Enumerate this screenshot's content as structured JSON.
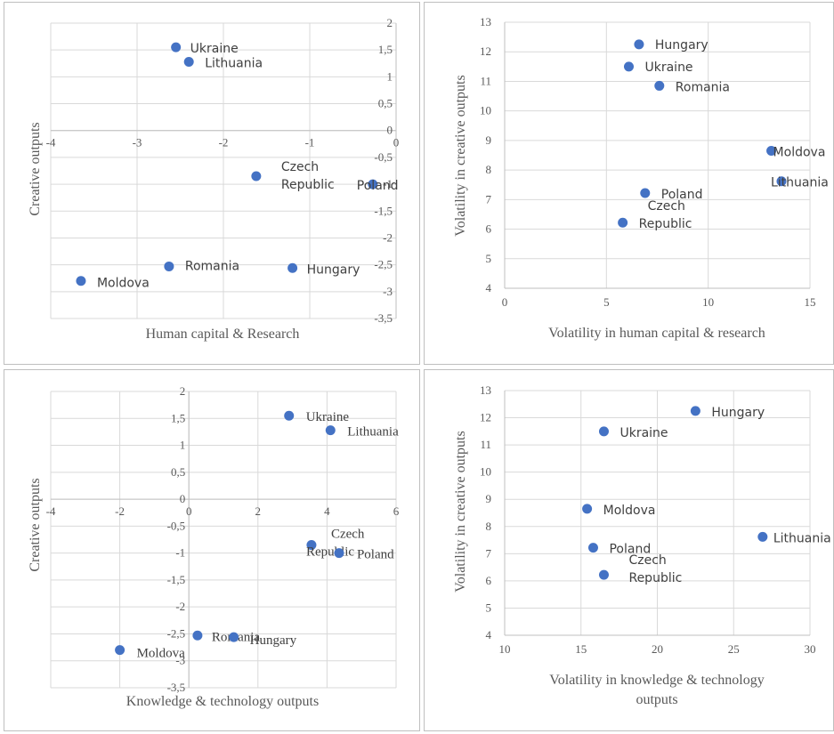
{
  "colors": {
    "point": "#4472c4",
    "grid": "#d9d9d9",
    "axis": "#bfbfbf",
    "text": "#595959"
  },
  "chart_data": [
    {
      "type": "scatter",
      "xlabel": "Human capital & Research",
      "ylabel": "Creative outputs",
      "xlim": [
        -4,
        0
      ],
      "ylim": [
        -3.5,
        2
      ],
      "xticks": [
        "-4",
        "-3",
        "-2",
        "-1",
        "0"
      ],
      "yticks": [
        "2",
        "1,5",
        "1",
        "0,5",
        "0",
        "-0,5",
        "-1",
        "-1,5",
        "-2",
        "-2,5",
        "-3",
        "-3,5"
      ],
      "grid": true,
      "points": [
        {
          "label": "Ukraine",
          "x": -2.55,
          "y": 1.55
        },
        {
          "label": "Lithuania",
          "x": -2.4,
          "y": 1.28
        },
        {
          "label": "Czech Republic",
          "x": -1.62,
          "y": -0.85
        },
        {
          "label": "Poland",
          "x": -0.27,
          "y": -1.0
        },
        {
          "label": "Romania",
          "x": -2.63,
          "y": -2.53
        },
        {
          "label": "Hungary",
          "x": -1.2,
          "y": -2.56
        },
        {
          "label": "Moldova",
          "x": -3.65,
          "y": -2.8
        }
      ]
    },
    {
      "type": "scatter",
      "xlabel": "Volatility in human capital & research",
      "ylabel": "Volatility in creative outputs",
      "xlim": [
        0,
        15
      ],
      "ylim": [
        4,
        13
      ],
      "xticks": [
        "0",
        "5",
        "10",
        "15"
      ],
      "yticks": [
        "13",
        "12",
        "11",
        "10",
        "9",
        "8",
        "7",
        "6",
        "5",
        "4"
      ],
      "grid": true,
      "points": [
        {
          "label": "Hungary",
          "x": 6.6,
          "y": 12.25
        },
        {
          "label": "Ukraine",
          "x": 6.1,
          "y": 11.5
        },
        {
          "label": "Romania",
          "x": 7.6,
          "y": 10.85
        },
        {
          "label": "Moldova",
          "x": 13.1,
          "y": 8.65
        },
        {
          "label": "Lithuania",
          "x": 13.6,
          "y": 7.62
        },
        {
          "label": "Poland",
          "x": 6.9,
          "y": 7.22
        },
        {
          "label": "Czech Republic",
          "x": 5.8,
          "y": 6.22
        }
      ]
    },
    {
      "type": "scatter",
      "xlabel": "Knowledge & technology outputs",
      "ylabel": "Creative outputs",
      "xlim": [
        -4,
        6
      ],
      "ylim": [
        -3.5,
        2
      ],
      "xticks": [
        "-4",
        "-2",
        "0",
        "2",
        "4",
        "6"
      ],
      "yticks": [
        "2",
        "1,5",
        "1",
        "0,5",
        "0",
        "-0,5",
        "-1",
        "-1,5",
        "-2",
        "-2,5",
        "-3",
        "-3,5"
      ],
      "grid": true,
      "points": [
        {
          "label": "Ukraine",
          "x": 2.9,
          "y": 1.55
        },
        {
          "label": "Lithuania",
          "x": 4.1,
          "y": 1.28
        },
        {
          "label": "Czech Republic",
          "x": 3.55,
          "y": -0.85
        },
        {
          "label": "Poland",
          "x": 4.35,
          "y": -1.0
        },
        {
          "label": "Romania",
          "x": 0.25,
          "y": -2.53
        },
        {
          "label": "Hungary",
          "x": 1.3,
          "y": -2.56
        },
        {
          "label": "Moldova",
          "x": -2.0,
          "y": -2.8
        }
      ]
    },
    {
      "type": "scatter",
      "xlabel": "Volatility in knowledge & technology outputs",
      "ylabel": "Volatility in creative outputs",
      "xlim": [
        10,
        30
      ],
      "ylim": [
        4,
        13
      ],
      "xticks": [
        "10",
        "15",
        "20",
        "25",
        "30"
      ],
      "yticks": [
        "13",
        "12",
        "11",
        "10",
        "9",
        "8",
        "7",
        "6",
        "5",
        "4"
      ],
      "grid": true,
      "points": [
        {
          "label": "Hungary",
          "x": 22.5,
          "y": 12.25
        },
        {
          "label": "Ukraine",
          "x": 16.5,
          "y": 11.5
        },
        {
          "label": "Moldova",
          "x": 15.4,
          "y": 8.65
        },
        {
          "label": "Lithuania",
          "x": 26.9,
          "y": 7.62
        },
        {
          "label": "Poland",
          "x": 15.8,
          "y": 7.22
        },
        {
          "label": "Czech Republic",
          "x": 16.5,
          "y": 6.22
        }
      ]
    }
  ]
}
